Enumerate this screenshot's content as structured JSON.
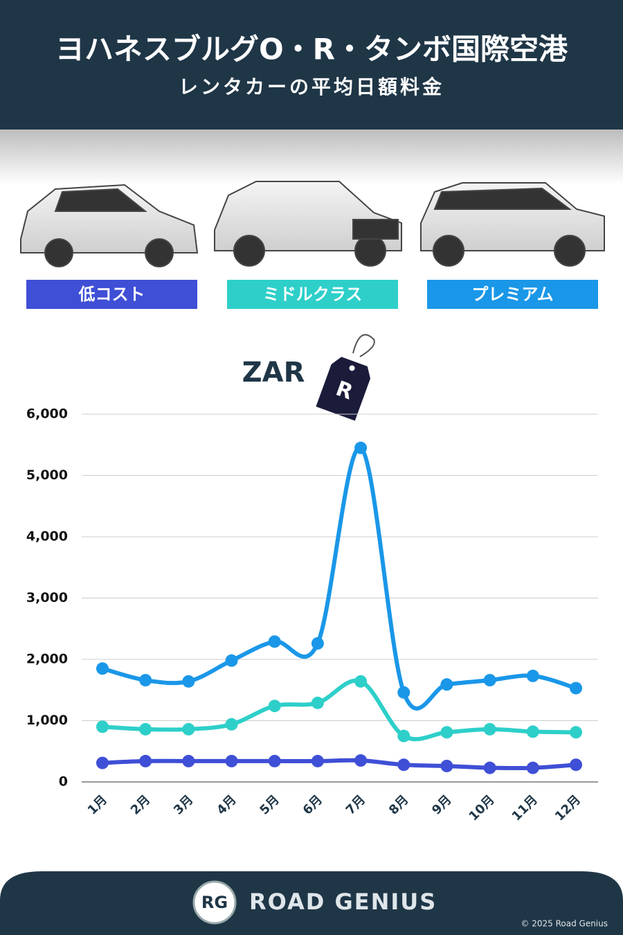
{
  "chart_data": {
    "type": "line",
    "title": "ヨハネスブルグO・R・タンボ国際空港",
    "subtitle": "レンタカーの平均日額料金",
    "unit_label": "ZAR",
    "tag_label": "R",
    "categories": [
      "1月",
      "2月",
      "3月",
      "4月",
      "5月",
      "6月",
      "7月",
      "8月",
      "9月",
      "10月",
      "11月",
      "12月"
    ],
    "series": [
      {
        "name": "低コスト",
        "color": "#3f4fd6",
        "values": [
          310,
          340,
          340,
          340,
          340,
          340,
          350,
          280,
          260,
          230,
          230,
          280
        ]
      },
      {
        "name": "ミドルクラス",
        "color": "#2ecfc9",
        "values": [
          900,
          860,
          860,
          940,
          1240,
          1290,
          1640,
          750,
          810,
          860,
          820,
          810
        ]
      },
      {
        "name": "プレミアム",
        "color": "#1a97e8",
        "values": [
          1850,
          1660,
          1640,
          1980,
          2290,
          2260,
          5450,
          1460,
          1590,
          1660,
          1730,
          1530
        ]
      }
    ],
    "ylim": [
      0,
      6000
    ],
    "yticks": [
      0,
      {
        "value": 1000,
        "label": "1,000"
      },
      {
        "value": 2000,
        "label": "2,000"
      },
      {
        "value": 3000,
        "label": "3,000"
      },
      {
        "value": 4000,
        "label": "4,000"
      },
      {
        "value": 5000,
        "label": "5,000"
      },
      {
        "value": 6000,
        "label": "6,000"
      }
    ],
    "grid": true,
    "brand": "ROAD GENIUS",
    "brand_logo": "RG",
    "copyright": "© 2025 Road Genius"
  }
}
